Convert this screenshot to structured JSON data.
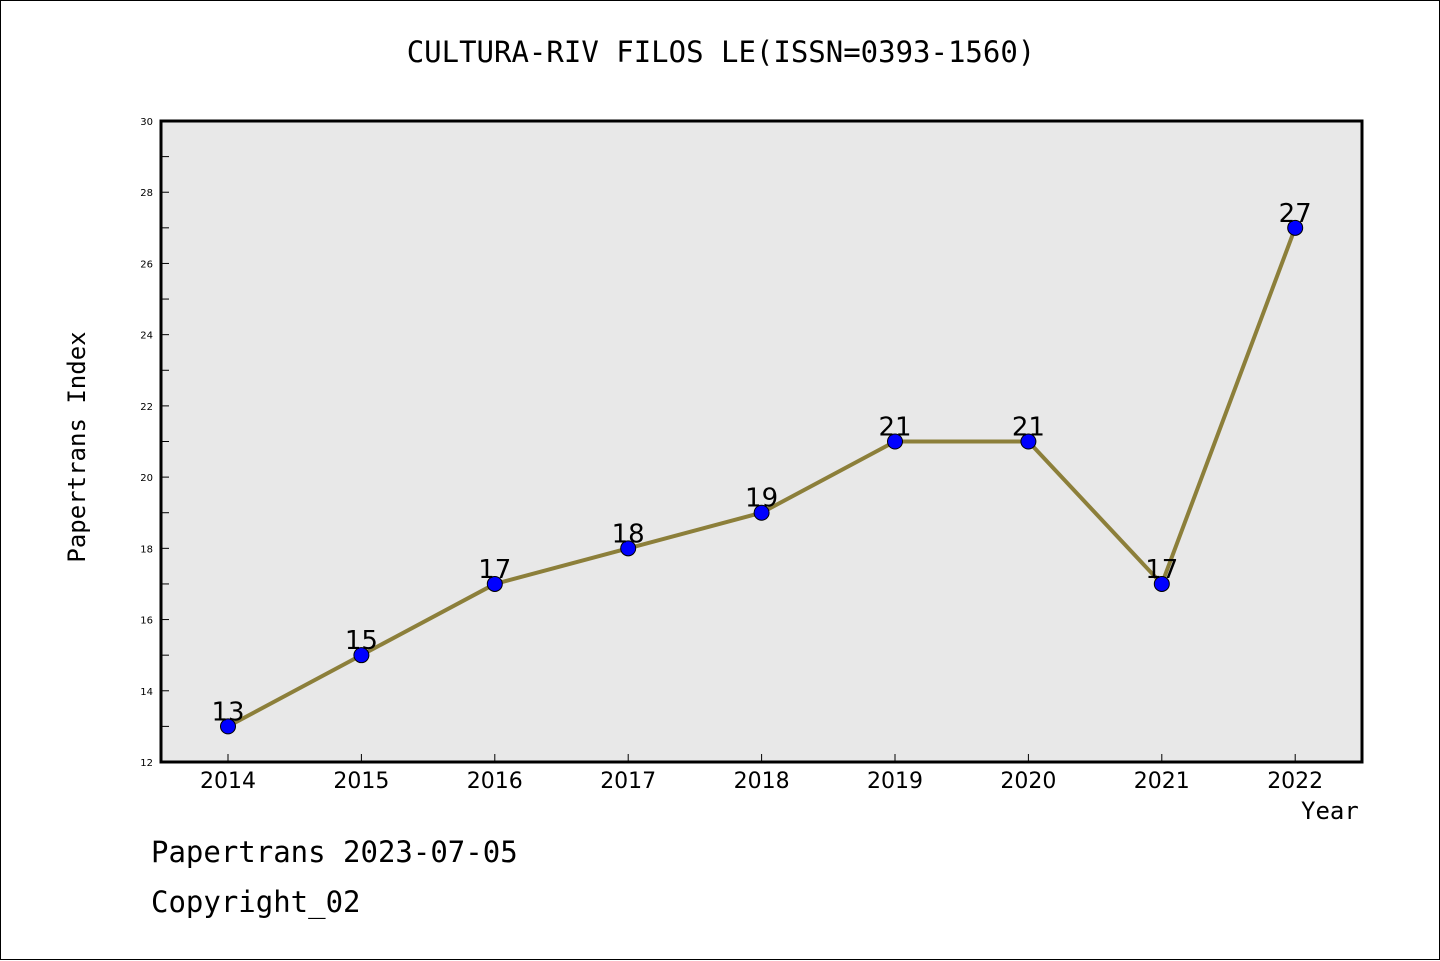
{
  "chart_data": {
    "type": "line",
    "title": "CULTURA-RIV FILOS LE(ISSN=0393-1560)",
    "xlabel": "Year",
    "ylabel": "Papertrans Index",
    "x": [
      "2014",
      "2015",
      "2016",
      "2017",
      "2018",
      "2019",
      "2020",
      "2021",
      "2022"
    ],
    "series": [
      {
        "values": [
          13,
          15,
          17,
          18,
          19,
          21,
          21,
          17,
          27
        ]
      }
    ],
    "ylim": [
      12,
      30
    ],
    "yticks": [
      12,
      14,
      16,
      18,
      20,
      22,
      24,
      26,
      28,
      30
    ],
    "grid": false,
    "colors": {
      "line": "#8c7f3a",
      "marker": "#0000ff",
      "plot_bg": "#e8e8e8"
    }
  },
  "footer": {
    "date": "Papertrans 2023-07-05",
    "copyright": "Copyright_02"
  }
}
